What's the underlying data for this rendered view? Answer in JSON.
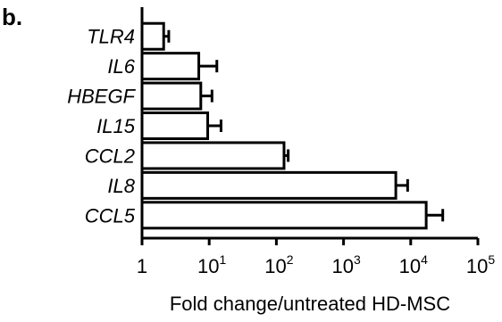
{
  "panel_label": "b.",
  "chart_data": {
    "type": "bar",
    "orientation": "horizontal",
    "x_scale": "log10",
    "xlim": [
      1,
      100000
    ],
    "xlabel": "Fold change/untreated HD-MSC",
    "ylabel": "",
    "x_ticks": [
      {
        "value": 1,
        "base": "1",
        "exp": ""
      },
      {
        "value": 10,
        "base": "10",
        "exp": "1"
      },
      {
        "value": 100,
        "base": "10",
        "exp": "2"
      },
      {
        "value": 1000,
        "base": "10",
        "exp": "3"
      },
      {
        "value": 10000,
        "base": "10",
        "exp": "4"
      },
      {
        "value": 100000,
        "base": "10",
        "exp": "5"
      }
    ],
    "categories": [
      "TLR4",
      "IL6",
      "HBEGF",
      "IL15",
      "CCL2",
      "IL8",
      "CCL5"
    ],
    "values": [
      2.1,
      7.0,
      7.5,
      9.5,
      130,
      6000,
      17000
    ],
    "error_upper": [
      2.5,
      13,
      11,
      15,
      150,
      9000,
      30000
    ],
    "bar_color": "#ffffff",
    "edge_color": "#000000",
    "grid": false,
    "legend": "none"
  }
}
